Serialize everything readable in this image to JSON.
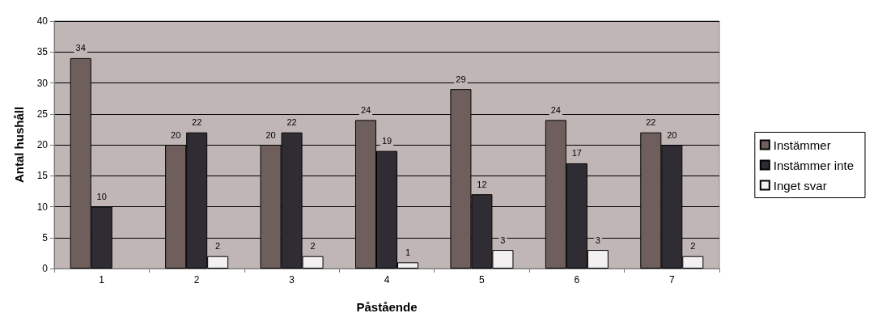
{
  "chart_data": {
    "type": "bar",
    "xlabel": "Påstående",
    "ylabel": "Antal hushåll",
    "categories": [
      "1",
      "2",
      "3",
      "4",
      "5",
      "6",
      "7"
    ],
    "series": [
      {
        "name": "Instämmer",
        "color": "#6e5f5c",
        "values": [
          34,
          20,
          20,
          24,
          29,
          24,
          22
        ]
      },
      {
        "name": "Instämmer inte",
        "color": "#2f2d33",
        "values": [
          10,
          22,
          22,
          19,
          12,
          17,
          20
        ]
      },
      {
        "name": "Inget svar",
        "color": "#f2f0f0",
        "values": [
          null,
          2,
          2,
          1,
          3,
          3,
          2
        ]
      }
    ],
    "ylim": [
      0,
      40
    ],
    "yticks": [
      0,
      5,
      10,
      15,
      20,
      25,
      30,
      35,
      40
    ],
    "grid": "y",
    "legend": "right",
    "data_labels": true
  }
}
